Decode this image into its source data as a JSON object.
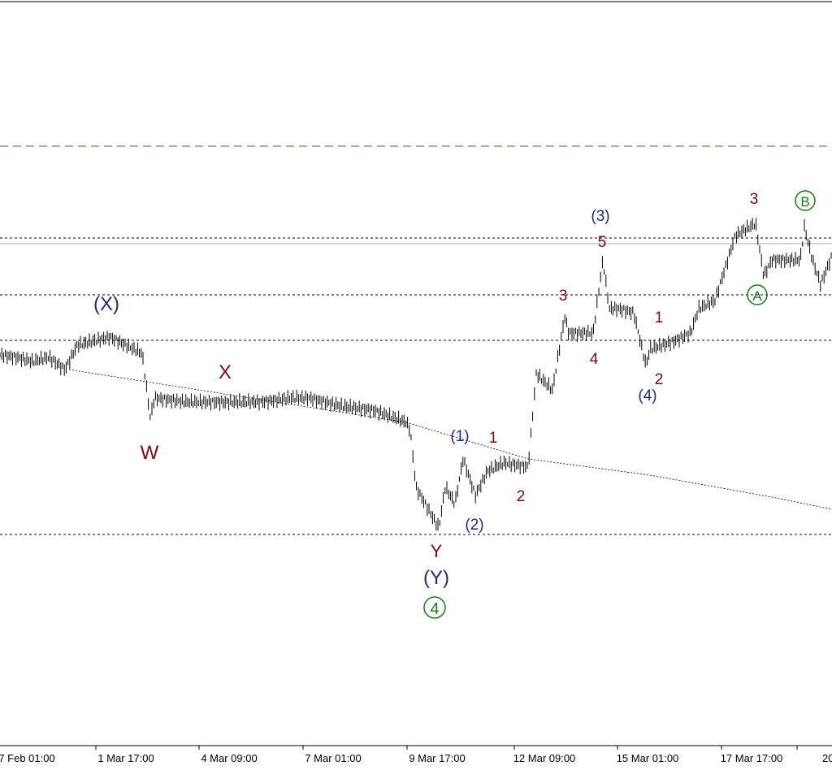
{
  "x_axis": {
    "labels": [
      "7 Feb 01:00",
      "1 Mar 17:00",
      "4 Mar 09:00",
      "7 Mar 01:00",
      "9 Mar 17:00",
      "12 Mar 09:00",
      "15 Mar 01:00",
      "17 Mar 17:00",
      "20"
    ]
  },
  "annotations": [
    {
      "label": "(X)"
    },
    {
      "label": "W"
    },
    {
      "label": "X"
    },
    {
      "label": "Y"
    },
    {
      "label": "(Y)"
    },
    {
      "label": "4"
    },
    {
      "label": "(1)"
    },
    {
      "label": "1"
    },
    {
      "label": "(2)"
    },
    {
      "label": "2"
    },
    {
      "label": "3"
    },
    {
      "label": "4"
    },
    {
      "label": "(3)"
    },
    {
      "label": "5"
    },
    {
      "label": "1"
    },
    {
      "label": "2"
    },
    {
      "label": "(4)"
    },
    {
      "label": "3"
    },
    {
      "label": "B"
    },
    {
      "label": "A"
    }
  ]
}
